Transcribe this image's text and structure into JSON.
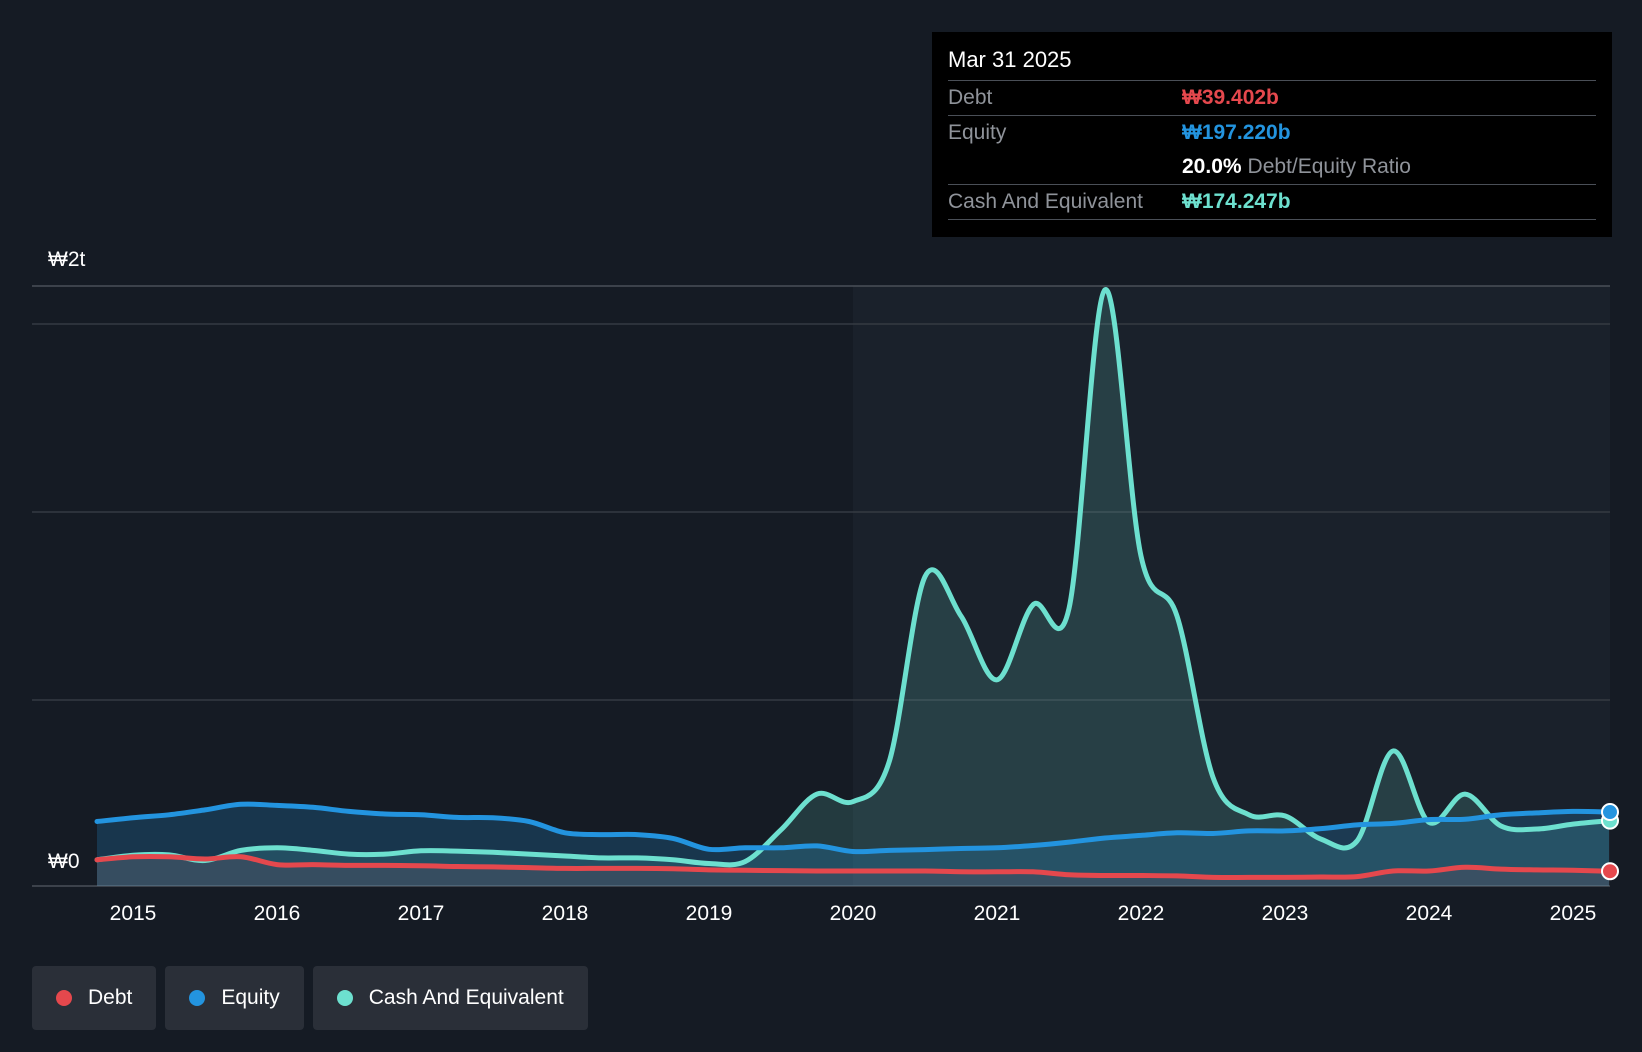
{
  "tooltip": {
    "date": "Mar 31 2025",
    "debt_label": "Debt",
    "debt_value": "₩39.402b",
    "equity_label": "Equity",
    "equity_value": "₩197.220b",
    "ratio_value": "20.0%",
    "ratio_label": "Debt/Equity Ratio",
    "cash_label": "Cash And Equivalent",
    "cash_value": "₩174.247b"
  },
  "legend": {
    "debt": "Debt",
    "equity": "Equity",
    "cash": "Cash And Equivalent"
  },
  "colors": {
    "debt": "#e5484d",
    "equity": "#2394df",
    "cash": "#6de0cf",
    "background": "#151b24",
    "tooltip_bg": "#000000"
  },
  "chart_data": {
    "type": "area",
    "title": "",
    "xlabel": "",
    "ylabel": "",
    "y_tick_labels": [
      "₩0",
      "₩2t"
    ],
    "x_tick_labels": [
      "2015",
      "2016",
      "2017",
      "2018",
      "2019",
      "2020",
      "2021",
      "2022",
      "2023",
      "2024",
      "2025"
    ],
    "ylim": [
      0,
      1600
    ],
    "y_unit": "₩b",
    "grid": true,
    "legend_position": "bottom-left",
    "series": [
      {
        "name": "Debt",
        "color": "#e5484d",
        "points": [
          [
            2014.75,
            70
          ],
          [
            2015.0,
            78
          ],
          [
            2015.25,
            78
          ],
          [
            2015.5,
            72
          ],
          [
            2015.75,
            78
          ],
          [
            2016.0,
            57
          ],
          [
            2016.25,
            57
          ],
          [
            2016.5,
            55
          ],
          [
            2016.75,
            55
          ],
          [
            2017.0,
            54
          ],
          [
            2017.25,
            52
          ],
          [
            2017.5,
            51
          ],
          [
            2017.75,
            49
          ],
          [
            2018.0,
            47
          ],
          [
            2018.25,
            47
          ],
          [
            2018.5,
            47
          ],
          [
            2018.75,
            46
          ],
          [
            2019.0,
            43
          ],
          [
            2019.25,
            42
          ],
          [
            2019.5,
            41
          ],
          [
            2019.75,
            40
          ],
          [
            2020.0,
            40
          ],
          [
            2020.25,
            40
          ],
          [
            2020.5,
            40
          ],
          [
            2020.75,
            38
          ],
          [
            2021.0,
            38
          ],
          [
            2021.25,
            38
          ],
          [
            2021.5,
            30
          ],
          [
            2021.75,
            28
          ],
          [
            2022.0,
            28
          ],
          [
            2022.25,
            27
          ],
          [
            2022.5,
            23
          ],
          [
            2022.75,
            23
          ],
          [
            2023.0,
            23
          ],
          [
            2023.25,
            24
          ],
          [
            2023.5,
            25
          ],
          [
            2023.75,
            40
          ],
          [
            2024.0,
            40
          ],
          [
            2024.25,
            50
          ],
          [
            2024.5,
            45
          ],
          [
            2024.75,
            43
          ],
          [
            2025.0,
            42
          ],
          [
            2025.25,
            39.4
          ]
        ]
      },
      {
        "name": "Equity",
        "color": "#2394df",
        "points": [
          [
            2014.75,
            172
          ],
          [
            2015.0,
            182
          ],
          [
            2015.25,
            190
          ],
          [
            2015.5,
            203
          ],
          [
            2015.75,
            218
          ],
          [
            2016.0,
            215
          ],
          [
            2016.25,
            210
          ],
          [
            2016.5,
            199
          ],
          [
            2016.75,
            192
          ],
          [
            2017.0,
            190
          ],
          [
            2017.25,
            183
          ],
          [
            2017.5,
            182
          ],
          [
            2017.75,
            172
          ],
          [
            2018.0,
            142
          ],
          [
            2018.25,
            137
          ],
          [
            2018.5,
            137
          ],
          [
            2018.75,
            127
          ],
          [
            2019.0,
            98
          ],
          [
            2019.25,
            102
          ],
          [
            2019.5,
            102
          ],
          [
            2019.75,
            107
          ],
          [
            2020.0,
            92
          ],
          [
            2020.25,
            95
          ],
          [
            2020.5,
            97
          ],
          [
            2020.75,
            100
          ],
          [
            2021.0,
            102
          ],
          [
            2021.25,
            108
          ],
          [
            2021.5,
            117
          ],
          [
            2021.75,
            128
          ],
          [
            2022.0,
            135
          ],
          [
            2022.25,
            142
          ],
          [
            2022.5,
            140
          ],
          [
            2022.75,
            147
          ],
          [
            2023.0,
            147
          ],
          [
            2023.25,
            153
          ],
          [
            2023.5,
            163
          ],
          [
            2023.75,
            167
          ],
          [
            2024.0,
            177
          ],
          [
            2024.25,
            178
          ],
          [
            2024.5,
            190
          ],
          [
            2024.75,
            195
          ],
          [
            2025.0,
            199
          ],
          [
            2025.25,
            197.2
          ]
        ]
      },
      {
        "name": "Cash And Equivalent",
        "color": "#6de0cf",
        "points": [
          [
            2014.75,
            70
          ],
          [
            2015.0,
            82
          ],
          [
            2015.25,
            83
          ],
          [
            2015.5,
            68
          ],
          [
            2015.75,
            95
          ],
          [
            2016.0,
            102
          ],
          [
            2016.25,
            95
          ],
          [
            2016.5,
            85
          ],
          [
            2016.75,
            85
          ],
          [
            2017.0,
            94
          ],
          [
            2017.25,
            93
          ],
          [
            2017.5,
            90
          ],
          [
            2017.75,
            85
          ],
          [
            2018.0,
            80
          ],
          [
            2018.25,
            75
          ],
          [
            2018.5,
            75
          ],
          [
            2018.75,
            70
          ],
          [
            2019.0,
            60
          ],
          [
            2019.25,
            65
          ],
          [
            2019.5,
            150
          ],
          [
            2019.75,
            245
          ],
          [
            2020.0,
            225
          ],
          [
            2020.25,
            330
          ],
          [
            2020.5,
            825
          ],
          [
            2020.75,
            720
          ],
          [
            2021.0,
            550
          ],
          [
            2021.25,
            750
          ],
          [
            2021.5,
            740
          ],
          [
            2021.75,
            1590
          ],
          [
            2022.0,
            880
          ],
          [
            2022.25,
            720
          ],
          [
            2022.5,
            290
          ],
          [
            2022.75,
            190
          ],
          [
            2023.0,
            187
          ],
          [
            2023.25,
            125
          ],
          [
            2023.5,
            120
          ],
          [
            2023.75,
            360
          ],
          [
            2024.0,
            170
          ],
          [
            2024.25,
            245
          ],
          [
            2024.5,
            160
          ],
          [
            2024.75,
            152
          ],
          [
            2025.0,
            165
          ],
          [
            2025.25,
            174.2
          ]
        ]
      }
    ]
  }
}
